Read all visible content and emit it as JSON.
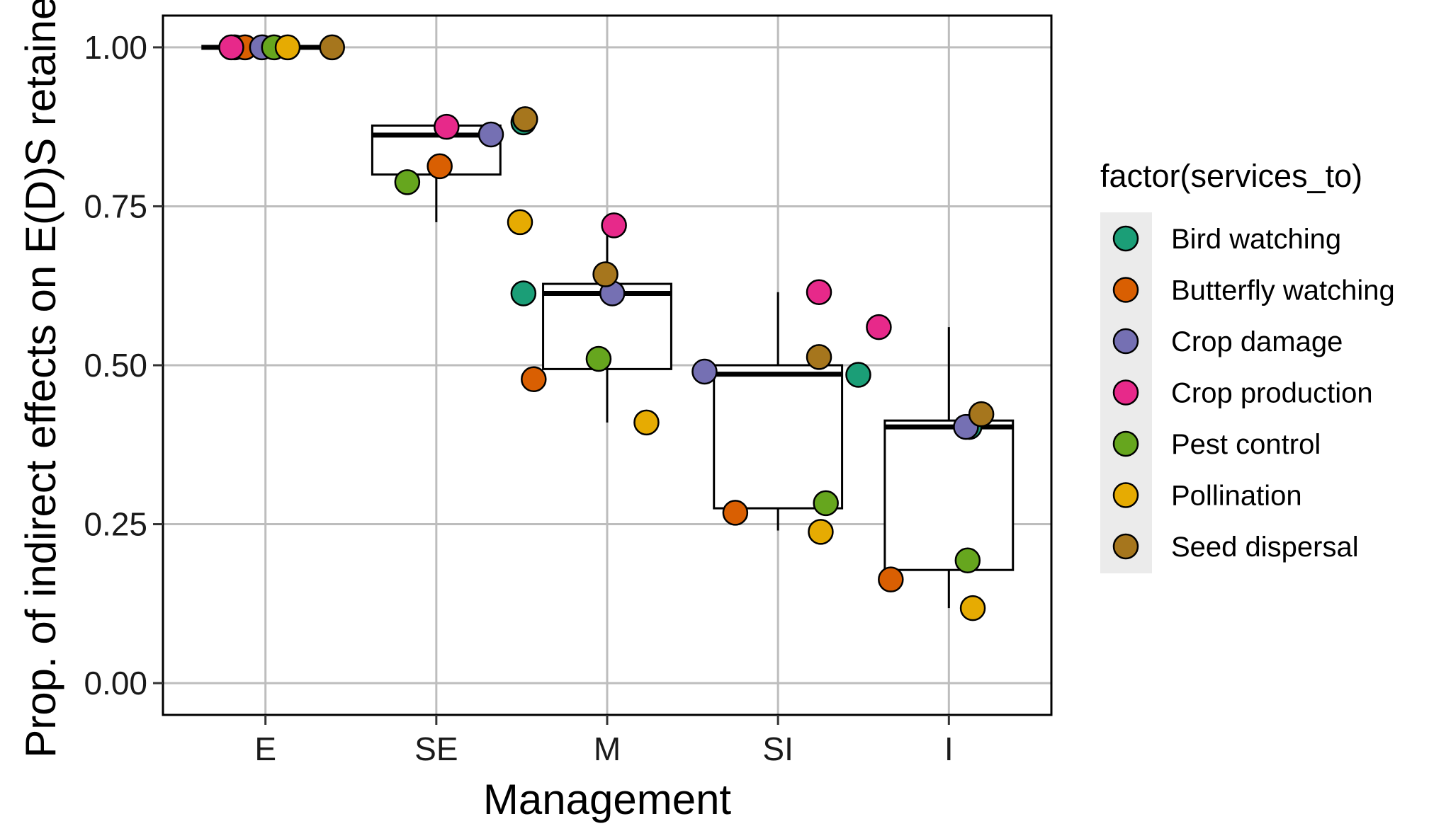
{
  "chart_data": {
    "type": "box",
    "xlabel": "Management",
    "ylabel": "Prop. of indirect effects on E(D)S retained",
    "categories": [
      "E",
      "SE",
      "M",
      "SI",
      "I"
    ],
    "ylim": [
      -0.05,
      1.05
    ],
    "yticks": [
      0,
      0.25,
      0.5,
      0.75,
      1.0
    ],
    "ytick_labels": [
      "0.00",
      "0.25",
      "0.50",
      "0.75",
      "1.00"
    ],
    "grid": true,
    "legend": {
      "title": "factor(services_to)",
      "placement": "right",
      "entries": [
        "Bird watching",
        "Butterfly watching",
        "Crop damage",
        "Crop production",
        "Pest control",
        "Pollination",
        "Seed dispersal"
      ]
    },
    "colors": {
      "Bird watching": "#1b9e77",
      "Butterfly watching": "#d95f02",
      "Crop damage": "#7570b3",
      "Crop production": "#e7298a",
      "Pest control": "#66a61e",
      "Pollination": "#e6ab02",
      "Seed dispersal": "#a6761d"
    },
    "boxes": [
      {
        "category": "E",
        "min": 1.0,
        "q1": 1.0,
        "median": 1.0,
        "q3": 1.0,
        "max": 1.0
      },
      {
        "category": "SE",
        "min": 0.725,
        "q1": 0.8,
        "median": 0.862,
        "q3": 0.877,
        "max": 0.885
      },
      {
        "category": "M",
        "min": 0.41,
        "q1": 0.494,
        "median": 0.613,
        "q3": 0.628,
        "max": 0.72
      },
      {
        "category": "SI",
        "min": 0.24,
        "q1": 0.275,
        "median": 0.486,
        "q3": 0.5,
        "max": 0.615
      },
      {
        "category": "I",
        "min": 0.118,
        "q1": 0.178,
        "median": 0.403,
        "q3": 0.413,
        "max": 0.56
      }
    ],
    "series": [
      {
        "name": "Bird watching",
        "values": [
          1.0,
          0.882,
          0.613,
          0.485,
          0.403
        ]
      },
      {
        "name": "Butterfly watching",
        "values": [
          1.0,
          0.813,
          0.478,
          0.268,
          0.163
        ]
      },
      {
        "name": "Crop damage",
        "values": [
          1.0,
          0.863,
          0.613,
          0.49,
          0.403
        ]
      },
      {
        "name": "Crop production",
        "values": [
          1.0,
          0.875,
          0.72,
          0.615,
          0.56
        ]
      },
      {
        "name": "Pest control",
        "values": [
          1.0,
          0.788,
          0.51,
          0.283,
          0.193
        ]
      },
      {
        "name": "Pollination",
        "values": [
          1.0,
          0.725,
          0.41,
          0.238,
          0.118
        ]
      },
      {
        "name": "Seed dispersal",
        "values": [
          1.0,
          0.887,
          0.643,
          0.513,
          0.423
        ]
      }
    ]
  }
}
